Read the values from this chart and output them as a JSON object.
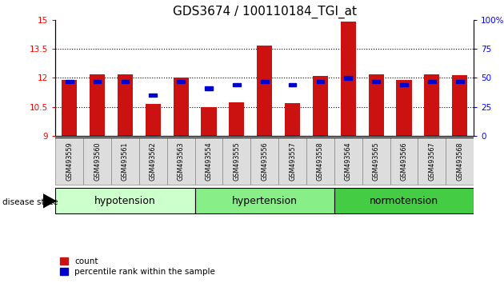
{
  "title": "GDS3674 / 100110184_TGI_at",
  "samples": [
    "GSM493559",
    "GSM493560",
    "GSM493561",
    "GSM493562",
    "GSM493563",
    "GSM493554",
    "GSM493555",
    "GSM493556",
    "GSM493557",
    "GSM493558",
    "GSM493564",
    "GSM493565",
    "GSM493566",
    "GSM493567",
    "GSM493568"
  ],
  "count_values": [
    11.9,
    12.2,
    12.2,
    10.65,
    12.0,
    10.5,
    10.75,
    13.65,
    10.7,
    12.1,
    14.9,
    12.2,
    11.9,
    12.2,
    12.15
  ],
  "percentile_values": [
    47,
    47,
    47,
    35,
    47,
    41,
    44,
    47,
    44,
    47,
    50,
    47,
    44,
    47,
    47
  ],
  "groups": [
    {
      "label": "hypotension",
      "start": 0,
      "end": 5,
      "color": "#ccffcc"
    },
    {
      "label": "hypertension",
      "start": 5,
      "end": 10,
      "color": "#88ee88"
    },
    {
      "label": "normotension",
      "start": 10,
      "end": 15,
      "color": "#44cc44"
    }
  ],
  "ylim_left": [
    9,
    15
  ],
  "ylim_right": [
    0,
    100
  ],
  "yticks_left": [
    9,
    10.5,
    12,
    13.5,
    15
  ],
  "ytick_labels_left": [
    "9",
    "10.5",
    "12",
    "13.5",
    "15"
  ],
  "yticks_right": [
    0,
    25,
    50,
    75,
    100
  ],
  "ytick_labels_right": [
    "0",
    "25",
    "50",
    "75",
    "100%"
  ],
  "bar_color": "#cc1111",
  "percentile_color": "#0000cc",
  "bar_bottom": 9.0,
  "background_color": "#ffffff",
  "title_fontsize": 11,
  "legend_count_label": "count",
  "legend_percentile_label": "percentile rank within the sample",
  "disease_state_label": "disease state",
  "group_label_fontsize": 9,
  "tick_fontsize": 7.5,
  "bar_width": 0.55
}
